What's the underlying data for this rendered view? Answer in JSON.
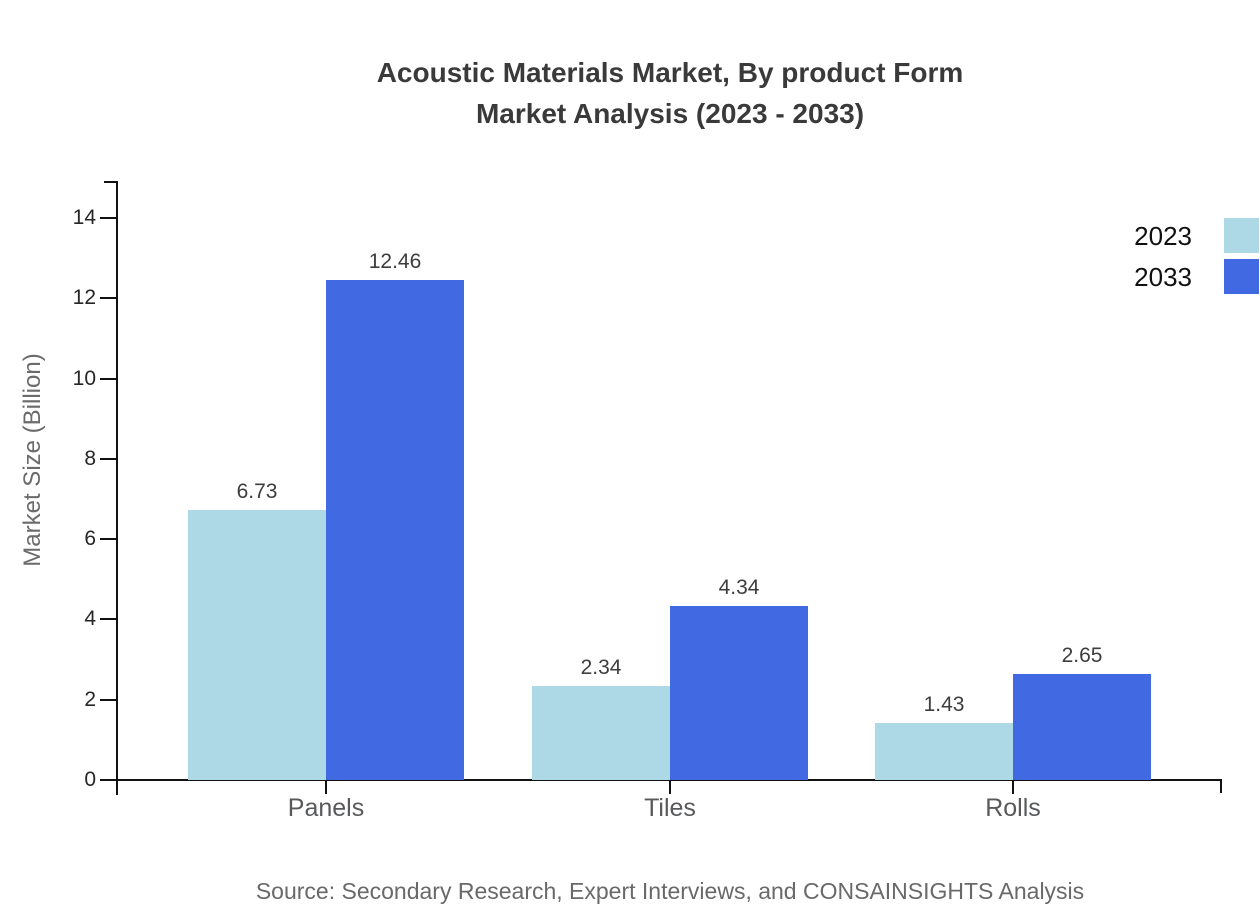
{
  "title": {
    "line1": "Acoustic Materials Market, By product Form",
    "line2": "Market Analysis (2023 - 2033)"
  },
  "source": "Source: Secondary Research, Expert Interviews, and CONSAINSIGHTS Analysis",
  "colors": {
    "series_2023": "#add8e6",
    "series_2033": "#4169e1",
    "axis": "#111111",
    "title_text": "#3a3a3a",
    "muted_text": "#6b6b6b"
  },
  "chart_data": {
    "type": "bar",
    "categories": [
      "Panels",
      "Tiles",
      "Rolls"
    ],
    "series": [
      {
        "name": "2023",
        "color": "#add8e6",
        "values": [
          6.73,
          2.34,
          1.43
        ]
      },
      {
        "name": "2033",
        "color": "#4169e1",
        "values": [
          12.46,
          4.34,
          2.65
        ]
      }
    ],
    "title": "Acoustic Materials Market, By product Form Market Analysis (2023 - 2033)",
    "xlabel": "",
    "ylabel": "Market Size (Billion)",
    "yticks": [
      0,
      2,
      4,
      6,
      8,
      10,
      12,
      14
    ],
    "ylim": [
      0,
      15
    ],
    "grid": false,
    "legend_position": "top-right",
    "value_labels": true,
    "value_label_decimals": 2
  }
}
